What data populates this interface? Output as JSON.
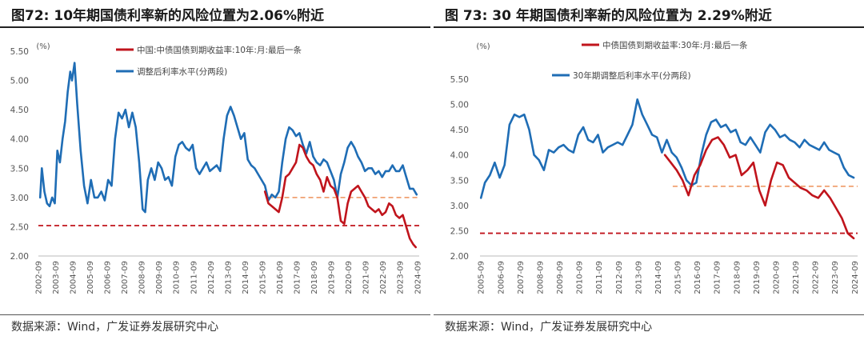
{
  "source_note": "数据来源：Wind，广发证券发展研究中心",
  "colors": {
    "red": "#c0141c",
    "blue": "#1f6db5",
    "orange_ref": "#f0a070",
    "red_ref": "#c0141c"
  },
  "chart_data": [
    {
      "type": "line",
      "title": "图72:  10年期国债利率新的风险位置为2.06%附近",
      "ylabel": "(%)",
      "ylim": [
        2.0,
        5.5
      ],
      "yticks": [
        "5.50",
        "5.00",
        "4.50",
        "4.00",
        "3.50",
        "3.00",
        "2.50",
        "2.00"
      ],
      "x_range": [
        2002.65,
        2024.75
      ],
      "xticks": [
        "2002-09",
        "2003-09",
        "2004-09",
        "2005-09",
        "2006-09",
        "2007-09",
        "2008-09",
        "2009-09",
        "2010-09",
        "2011-09",
        "2012-09",
        "2013-09",
        "2014-09",
        "2015-09",
        "2016-09",
        "2017-09",
        "2018-09",
        "2019-09",
        "2020-09",
        "2021-09",
        "2022-09",
        "2023-09",
        "2024-09"
      ],
      "legend": [
        {
          "label": "中国:中债国债到期收益率:10年:月:最后一条",
          "color": "#c0141c"
        },
        {
          "label": "调整后利率水平(分两段)",
          "color": "#1f6db5"
        }
      ],
      "reference_lines": [
        {
          "y": 3.0,
          "x_start": 2016.0,
          "x_end": 2024.75,
          "color": "#f0a070"
        },
        {
          "y": 2.52,
          "x_start": 2002.65,
          "x_end": 2024.75,
          "color": "#c0141c"
        }
      ],
      "series": [
        {
          "name": "调整后利率水平(分两段)",
          "color": "#1f6db5",
          "x": [
            2002.75,
            2002.85,
            2003.0,
            2003.15,
            2003.3,
            2003.45,
            2003.6,
            2003.75,
            2003.9,
            2004.05,
            2004.2,
            2004.35,
            2004.5,
            2004.6,
            2004.75,
            2004.9,
            2005.1,
            2005.3,
            2005.5,
            2005.7,
            2005.9,
            2006.1,
            2006.3,
            2006.5,
            2006.7,
            2006.9,
            2007.1,
            2007.3,
            2007.5,
            2007.7,
            2007.9,
            2008.1,
            2008.3,
            2008.5,
            2008.7,
            2008.85,
            2009.0,
            2009.2,
            2009.4,
            2009.6,
            2009.8,
            2010.0,
            2010.2,
            2010.4,
            2010.6,
            2010.8,
            2011.0,
            2011.2,
            2011.4,
            2011.6,
            2011.8,
            2012.0,
            2012.2,
            2012.4,
            2012.6,
            2012.8,
            2013.0,
            2013.2,
            2013.4,
            2013.6,
            2013.8,
            2014.0,
            2014.2,
            2014.4,
            2014.6,
            2014.8,
            2015.0,
            2015.2,
            2015.4,
            2015.6,
            2015.8,
            2016.0,
            2016.2,
            2016.4,
            2016.6,
            2016.8,
            2017.0,
            2017.2,
            2017.4,
            2017.6,
            2017.8,
            2018.0,
            2018.2,
            2018.4,
            2018.6,
            2018.8,
            2019.0,
            2019.2,
            2019.4,
            2019.6,
            2019.8,
            2020.0,
            2020.2,
            2020.4,
            2020.6,
            2020.8,
            2021.0,
            2021.2,
            2021.4,
            2021.6,
            2021.8,
            2022.0,
            2022.2,
            2022.4,
            2022.6,
            2022.8,
            2023.0,
            2023.2,
            2023.4,
            2023.6,
            2023.8,
            2024.0,
            2024.2,
            2024.4,
            2024.6
          ],
          "y": [
            3.0,
            3.5,
            3.1,
            2.9,
            2.85,
            3.0,
            2.9,
            3.8,
            3.6,
            4.0,
            4.3,
            4.8,
            5.15,
            5.0,
            5.3,
            4.6,
            3.8,
            3.2,
            2.9,
            3.3,
            3.0,
            3.0,
            3.1,
            2.95,
            3.3,
            3.2,
            4.0,
            4.45,
            4.35,
            4.5,
            4.2,
            4.45,
            4.2,
            3.6,
            2.8,
            2.75,
            3.3,
            3.5,
            3.3,
            3.6,
            3.5,
            3.3,
            3.35,
            3.2,
            3.7,
            3.9,
            3.95,
            3.85,
            3.8,
            3.9,
            3.5,
            3.4,
            3.5,
            3.6,
            3.45,
            3.5,
            3.55,
            3.45,
            4.0,
            4.4,
            4.55,
            4.4,
            4.2,
            4.0,
            4.1,
            3.65,
            3.55,
            3.5,
            3.4,
            3.3,
            3.2,
            2.95,
            3.05,
            3.0,
            3.1,
            3.6,
            4.0,
            4.2,
            4.15,
            4.05,
            4.1,
            3.9,
            3.75,
            3.95,
            3.7,
            3.6,
            3.55,
            3.65,
            3.6,
            3.45,
            3.3,
            3.0,
            3.4,
            3.6,
            3.85,
            3.95,
            3.85,
            3.7,
            3.6,
            3.45,
            3.5,
            3.5,
            3.4,
            3.45,
            3.35,
            3.45,
            3.45,
            3.55,
            3.45,
            3.45,
            3.55,
            3.35,
            3.15,
            3.15,
            3.05
          ]
        },
        {
          "name": "中国:中债国债到期收益率:10年:月:最后一条",
          "color": "#c0141c",
          "x": [
            2015.8,
            2016.0,
            2016.2,
            2016.4,
            2016.6,
            2016.8,
            2017.0,
            2017.2,
            2017.4,
            2017.6,
            2017.8,
            2018.0,
            2018.2,
            2018.4,
            2018.6,
            2018.8,
            2019.0,
            2019.2,
            2019.4,
            2019.6,
            2019.8,
            2020.0,
            2020.2,
            2020.4,
            2020.6,
            2020.8,
            2021.0,
            2021.2,
            2021.4,
            2021.6,
            2021.8,
            2022.0,
            2022.2,
            2022.4,
            2022.6,
            2022.8,
            2023.0,
            2023.2,
            2023.4,
            2023.6,
            2023.8,
            2024.0,
            2024.2,
            2024.4,
            2024.55
          ],
          "y": [
            3.1,
            2.9,
            2.85,
            2.8,
            2.75,
            3.0,
            3.35,
            3.4,
            3.5,
            3.6,
            3.9,
            3.85,
            3.7,
            3.6,
            3.55,
            3.4,
            3.3,
            3.1,
            3.35,
            3.2,
            3.15,
            3.0,
            2.6,
            2.55,
            2.9,
            3.1,
            3.15,
            3.2,
            3.1,
            3.0,
            2.85,
            2.8,
            2.75,
            2.8,
            2.7,
            2.75,
            2.9,
            2.85,
            2.7,
            2.65,
            2.7,
            2.5,
            2.3,
            2.2,
            2.15
          ]
        }
      ]
    },
    {
      "type": "line",
      "title": "图 73:  30 年期国债利率新的风险位置为 2.29%附近",
      "ylabel": "(%)",
      "ylim": [
        2.0,
        5.5
      ],
      "yticks": [
        "5.50",
        "5.00",
        "4.50",
        "4.00",
        "3.50",
        "3.00",
        "2.50",
        "2.00"
      ],
      "x_range": [
        2005.6,
        2024.8
      ],
      "xticks": [
        "2005-09",
        "2006-09",
        "2007-09",
        "2008-09",
        "2009-09",
        "2010-09",
        "2011-09",
        "2012-09",
        "2013-09",
        "2014-09",
        "2015-09",
        "2016-09",
        "2017-09",
        "2018-09",
        "2019-09",
        "2020-09",
        "2021-09",
        "2022-09",
        "2023-09",
        "2024-09"
      ],
      "legend": [
        {
          "label": "中债国债到期收益率:30年:月:最后一条",
          "color": "#c0141c"
        },
        {
          "label": "30年期调整后利率水平(分两段)",
          "color": "#1f6db5"
        }
      ],
      "reference_lines": [
        {
          "y": 3.38,
          "x_start": 2015.4,
          "x_end": 2024.8,
          "color": "#f0a070"
        },
        {
          "y": 2.45,
          "x_start": 2005.6,
          "x_end": 2024.8,
          "color": "#c0141c"
        }
      ],
      "series": [
        {
          "name": "30年期调整后利率水平(分两段)",
          "color": "#1f6db5",
          "x": [
            2005.65,
            2005.85,
            2006.1,
            2006.35,
            2006.6,
            2006.85,
            2007.1,
            2007.35,
            2007.6,
            2007.85,
            2008.1,
            2008.35,
            2008.6,
            2008.85,
            2009.1,
            2009.35,
            2009.6,
            2009.85,
            2010.1,
            2010.35,
            2010.6,
            2010.85,
            2011.1,
            2011.35,
            2011.6,
            2011.85,
            2012.1,
            2012.35,
            2012.6,
            2012.85,
            2013.1,
            2013.35,
            2013.6,
            2013.85,
            2014.1,
            2014.35,
            2014.6,
            2014.85,
            2015.1,
            2015.35,
            2015.6,
            2015.85,
            2016.1,
            2016.35,
            2016.6,
            2016.85,
            2017.1,
            2017.35,
            2017.6,
            2017.85,
            2018.1,
            2018.35,
            2018.6,
            2018.85,
            2019.1,
            2019.35,
            2019.6,
            2019.85,
            2020.1,
            2020.35,
            2020.6,
            2020.85,
            2021.1,
            2021.35,
            2021.6,
            2021.85,
            2022.1,
            2022.35,
            2022.6,
            2022.85,
            2023.1,
            2023.35,
            2023.6,
            2023.85,
            2024.1,
            2024.35,
            2024.6
          ],
          "y": [
            3.15,
            3.45,
            3.6,
            3.85,
            3.55,
            3.8,
            4.6,
            4.8,
            4.75,
            4.8,
            4.5,
            4.0,
            3.9,
            3.7,
            4.1,
            4.05,
            4.15,
            4.2,
            4.1,
            4.05,
            4.4,
            4.55,
            4.3,
            4.25,
            4.4,
            4.05,
            4.15,
            4.2,
            4.25,
            4.2,
            4.4,
            4.6,
            5.1,
            4.8,
            4.6,
            4.4,
            4.35,
            4.05,
            4.3,
            4.05,
            3.95,
            3.75,
            3.5,
            3.4,
            3.45,
            4.0,
            4.4,
            4.65,
            4.7,
            4.55,
            4.6,
            4.45,
            4.5,
            4.25,
            4.2,
            4.35,
            4.2,
            4.05,
            4.45,
            4.6,
            4.5,
            4.35,
            4.4,
            4.3,
            4.25,
            4.15,
            4.3,
            4.2,
            4.15,
            4.1,
            4.25,
            4.1,
            4.05,
            4.0,
            3.75,
            3.6,
            3.55
          ]
        },
        {
          "name": "中债国债到期收益率:30年:月:最后一条",
          "color": "#c0141c",
          "x": [
            2015.0,
            2015.3,
            2015.6,
            2015.9,
            2016.2,
            2016.5,
            2016.8,
            2017.1,
            2017.4,
            2017.7,
            2018.0,
            2018.3,
            2018.6,
            2018.9,
            2019.2,
            2019.5,
            2019.8,
            2020.1,
            2020.4,
            2020.7,
            2021.0,
            2021.3,
            2021.6,
            2021.9,
            2022.2,
            2022.5,
            2022.8,
            2023.1,
            2023.4,
            2023.7,
            2024.0,
            2024.3,
            2024.6
          ],
          "y": [
            4.0,
            3.85,
            3.7,
            3.5,
            3.2,
            3.6,
            3.8,
            4.1,
            4.3,
            4.35,
            4.2,
            3.95,
            4.0,
            3.6,
            3.7,
            3.85,
            3.3,
            3.0,
            3.5,
            3.85,
            3.8,
            3.55,
            3.45,
            3.35,
            3.3,
            3.2,
            3.15,
            3.3,
            3.15,
            2.95,
            2.75,
            2.45,
            2.35
          ]
        }
      ]
    }
  ]
}
